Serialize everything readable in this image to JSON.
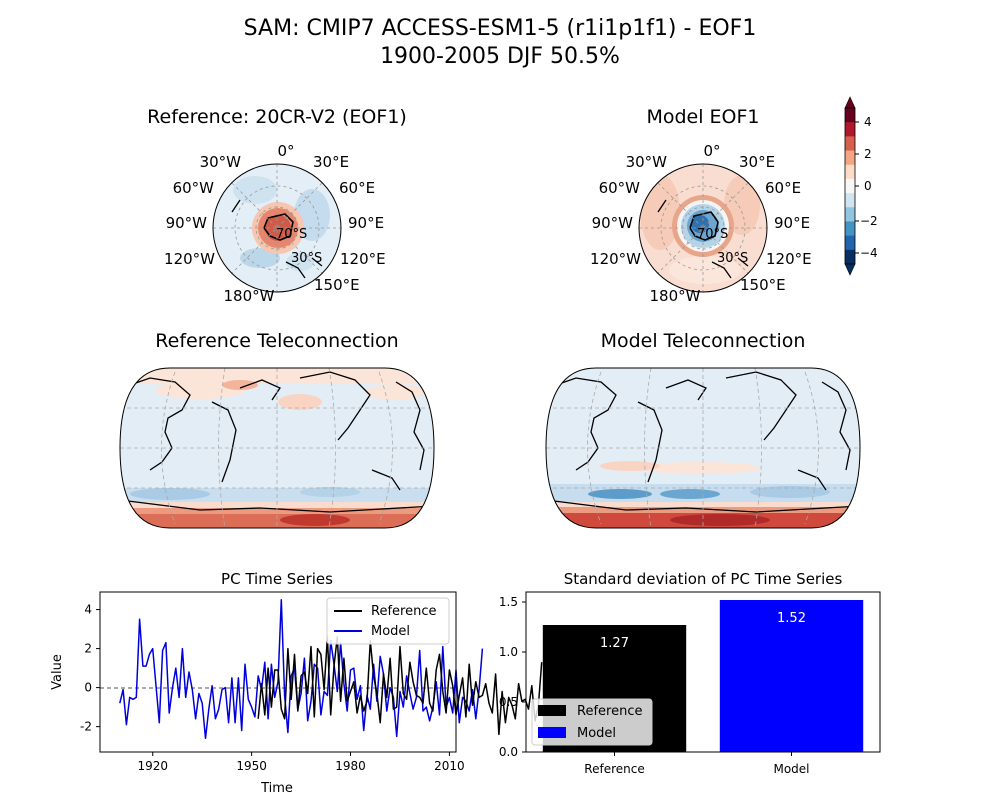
{
  "figure": {
    "title_line1": "SAM: CMIP7 ACCESS-ESM1-5 (r1i1p1f1) - EOF1",
    "title_line2": "1900-2005 DJF 50.5%"
  },
  "panels": {
    "ref_eof_title": "Reference: 20CR-V2 (EOF1)",
    "model_eof_title": "Model EOF1",
    "ref_tele_title": "Reference Teleconnection",
    "model_tele_title": "Model Teleconnection"
  },
  "polar_labels": {
    "lon": [
      "0°",
      "30°E",
      "60°E",
      "90°E",
      "120°E",
      "150°E",
      "180°W",
      "120°W",
      "90°W",
      "60°W",
      "30°W"
    ],
    "lat": [
      "70°S",
      "30°S"
    ]
  },
  "colorbar": {
    "ticks": [
      "4",
      "2",
      "0",
      "−2",
      "−4"
    ],
    "colors": [
      "#67001f",
      "#b2182b",
      "#d6604d",
      "#f4a582",
      "#fddbc7",
      "#f7f7f7",
      "#d1e5f0",
      "#92c5de",
      "#4393c3",
      "#2166ac",
      "#053061"
    ]
  },
  "chart_data": [
    {
      "type": "line",
      "title": "PC Time Series",
      "xlabel": "Time",
      "ylabel": "Value",
      "xlim": [
        1904,
        2012
      ],
      "ylim": [
        -3.3,
        4.9
      ],
      "xticks": [
        "1920",
        "1950",
        "1980",
        "2010"
      ],
      "yticks": [
        "-2",
        "0",
        "2",
        "4"
      ],
      "zero_line": true,
      "legend_position": "top-right",
      "series": [
        {
          "name": "Reference",
          "color": "#000000",
          "x_start": 1952,
          "values": [
            -1.6,
            0.2,
            -1.4,
            1.0,
            -1.0,
            0.9,
            0.9,
            -1.1,
            -1.6,
            2.0,
            -0.6,
            1.7,
            -1.2,
            0.6,
            0.8,
            -0.3,
            2.1,
            -1.5,
            2.0,
            1.7,
            -0.1,
            2.6,
            -1.4,
            1.1,
            2.6,
            -0.7,
            1.5,
            -0.7,
            -0.2,
            0.3,
            -1.3,
            -0.4,
            -1.2,
            -0.7,
            2.4,
            0.6,
            -0.3,
            -1.8,
            0.7,
            -0.5,
            1.5,
            -1.1,
            -1.0,
            2.1,
            -0.3,
            -0.6,
            1.3,
            0.3,
            -0.4,
            -0.5,
            -0.8,
            1.0,
            -0.8,
            -1.2,
            0.9,
            1.7,
            -0.2,
            -1.3,
            0.9,
            0.1,
            -1.4,
            -0.4,
            0.5,
            -1.5,
            1.2,
            -0.9,
            0.3,
            -0.5,
            -0.4,
            0.2,
            -0.8,
            -1.3,
            0.7,
            -2.4,
            -0.2,
            -1.8,
            -0.5,
            -0.9,
            -1.6,
            0.2,
            -0.7,
            -0.6,
            -1.1,
            0.1,
            -1.7,
            -0.9,
            1.3
          ]
        },
        {
          "name": "Model",
          "color": "#0000dd",
          "x_start": 1910,
          "values": [
            -0.8,
            -0.1,
            -1.9,
            -0.5,
            -0.6,
            -0.5,
            3.5,
            1.1,
            1.1,
            1.7,
            2.0,
            0.1,
            -1.8,
            1.9,
            2.3,
            -1.3,
            0.0,
            1.0,
            -0.5,
            2.0,
            -0.5,
            0.8,
            -0.1,
            -1.6,
            -0.3,
            -0.8,
            -2.6,
            -1.1,
            0.1,
            -1.6,
            -1.1,
            -0.1,
            0.0,
            -1.8,
            0.5,
            -1.8,
            0.5,
            -2.2,
            1.2,
            -0.6,
            -1.0,
            -1.5,
            0.6,
            -0.1,
            1.3,
            -1.6,
            1.2,
            -0.5,
            0.3,
            4.5,
            -0.4,
            -2.3,
            0.6,
            1.0,
            -1.1,
            -0.3,
            1.5,
            -1.7,
            -0.7,
            1.2,
            1.0,
            -1.4,
            -0.2,
            -0.4,
            2.4,
            1.2,
            -0.2,
            2.3,
            0.2,
            -1.2,
            0.9,
            1.0,
            -0.6,
            0.1,
            -2.2,
            -0.4,
            -1.1,
            1.2,
            -0.7,
            1.6,
            0.7,
            -1.2,
            0.0,
            -0.5,
            -2.5,
            -0.2,
            -1.0,
            0.6,
            -0.3,
            -1.1,
            -0.5,
            1.9,
            -1.2,
            -1.0,
            -1.7,
            -1.0,
            0.3,
            -1.4,
            2.1,
            -1.0,
            -0.5,
            -1.3,
            0.9,
            -1.8,
            -0.5,
            -0.7,
            -1.2,
            -0.1,
            -1.6,
            -0.1,
            2.0
          ]
        }
      ]
    },
    {
      "type": "bar",
      "title": "Standard deviation of PC Time Series",
      "categories": [
        "Reference",
        "Model"
      ],
      "values": [
        1.27,
        1.52
      ],
      "value_labels": [
        "1.27",
        "1.52"
      ],
      "colors": [
        "#000000",
        "#0000ff"
      ],
      "ylim": [
        0,
        1.6
      ],
      "yticks": [
        "0.0",
        "0.5",
        "1.0",
        "1.5"
      ],
      "legend": [
        "Reference",
        "Model"
      ],
      "legend_position": "bottom-left"
    }
  ]
}
